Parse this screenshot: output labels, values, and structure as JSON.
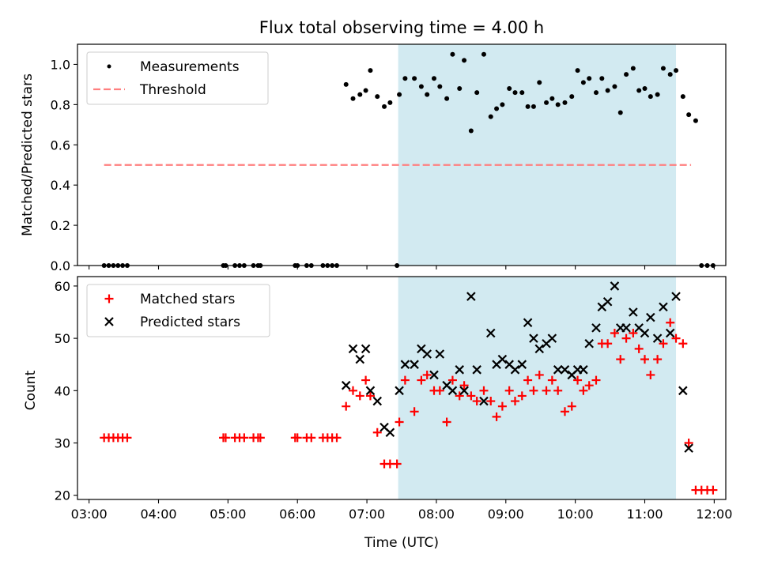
{
  "chart_data": [
    {
      "type": "scatter",
      "title": "Flux total observing time = 4.00 h",
      "xlabel": "",
      "ylabel": "Matched/Predicted stars",
      "ylim": [
        0,
        1.1
      ],
      "yticks": [
        0.0,
        0.2,
        0.4,
        0.6,
        0.8,
        1.0
      ],
      "ytick_labels": [
        "0.0",
        "0.2",
        "0.4",
        "0.6",
        "0.8",
        "1.0"
      ],
      "xlim": [
        "02:50",
        "12:10"
      ],
      "legend_placement": "upper-left",
      "shaded_span": {
        "start": "07:27",
        "end": "11:27",
        "color": "#add8e6"
      },
      "threshold": {
        "name": "Threshold",
        "value": 0.5,
        "x_start": "03:13",
        "x_end": "11:40",
        "color": "#ff7f7f"
      },
      "series": [
        {
          "name": "Measurements",
          "marker": "dot",
          "color": "#000000",
          "points": [
            [
              "03:13",
              0.0
            ],
            [
              "03:17",
              0.0
            ],
            [
              "03:21",
              0.0
            ],
            [
              "03:25",
              0.0
            ],
            [
              "03:29",
              0.0
            ],
            [
              "03:33",
              0.0
            ],
            [
              "04:56",
              0.0
            ],
            [
              "04:58",
              0.0
            ],
            [
              "05:06",
              0.0
            ],
            [
              "05:10",
              0.0
            ],
            [
              "05:14",
              0.0
            ],
            [
              "05:22",
              0.0
            ],
            [
              "05:26",
              0.0
            ],
            [
              "05:28",
              0.0
            ],
            [
              "05:58",
              0.0
            ],
            [
              "06:00",
              0.0
            ],
            [
              "06:08",
              0.0
            ],
            [
              "06:12",
              0.0
            ],
            [
              "06:22",
              0.0
            ],
            [
              "06:26",
              0.0
            ],
            [
              "06:30",
              0.0
            ],
            [
              "06:34",
              0.0
            ],
            [
              "06:42",
              0.9
            ],
            [
              "06:48",
              0.83
            ],
            [
              "06:54",
              0.85
            ],
            [
              "06:59",
              0.87
            ],
            [
              "07:03",
              0.97
            ],
            [
              "07:09",
              0.84
            ],
            [
              "07:15",
              0.79
            ],
            [
              "07:20",
              0.81
            ],
            [
              "07:26",
              0.0
            ],
            [
              "07:28",
              0.85
            ],
            [
              "07:33",
              0.93
            ],
            [
              "07:41",
              0.93
            ],
            [
              "07:47",
              0.89
            ],
            [
              "07:52",
              0.85
            ],
            [
              "07:58",
              0.93
            ],
            [
              "08:03",
              0.89
            ],
            [
              "08:09",
              0.83
            ],
            [
              "08:14",
              1.05
            ],
            [
              "08:20",
              0.88
            ],
            [
              "08:24",
              1.02
            ],
            [
              "08:30",
              0.67
            ],
            [
              "08:35",
              0.86
            ],
            [
              "08:41",
              1.05
            ],
            [
              "08:47",
              0.74
            ],
            [
              "08:52",
              0.78
            ],
            [
              "08:57",
              0.8
            ],
            [
              "09:03",
              0.88
            ],
            [
              "09:08",
              0.86
            ],
            [
              "09:14",
              0.86
            ],
            [
              "09:19",
              0.79
            ],
            [
              "09:24",
              0.79
            ],
            [
              "09:29",
              0.91
            ],
            [
              "09:35",
              0.81
            ],
            [
              "09:40",
              0.83
            ],
            [
              "09:45",
              0.8
            ],
            [
              "09:51",
              0.81
            ],
            [
              "09:57",
              0.84
            ],
            [
              "10:02",
              0.97
            ],
            [
              "10:07",
              0.91
            ],
            [
              "10:12",
              0.93
            ],
            [
              "10:18",
              0.86
            ],
            [
              "10:23",
              0.93
            ],
            [
              "10:28",
              0.87
            ],
            [
              "10:34",
              0.89
            ],
            [
              "10:39",
              0.76
            ],
            [
              "10:44",
              0.95
            ],
            [
              "10:50",
              0.98
            ],
            [
              "10:55",
              0.87
            ],
            [
              "11:00",
              0.88
            ],
            [
              "11:05",
              0.84
            ],
            [
              "11:11",
              0.85
            ],
            [
              "11:16",
              0.98
            ],
            [
              "11:22",
              0.95
            ],
            [
              "11:27",
              0.97
            ],
            [
              "11:33",
              0.84
            ],
            [
              "11:38",
              0.75
            ],
            [
              "11:44",
              0.72
            ],
            [
              "11:49",
              0.0
            ],
            [
              "11:54",
              0.0
            ],
            [
              "11:59",
              0.0
            ]
          ]
        }
      ]
    },
    {
      "type": "scatter",
      "title": "",
      "xlabel": "Time (UTC)",
      "ylabel": "Count",
      "ylim": [
        19.2,
        61.8
      ],
      "yticks": [
        20,
        30,
        40,
        50,
        60
      ],
      "ytick_labels": [
        "20",
        "30",
        "40",
        "50",
        "60"
      ],
      "xlim": [
        "02:50",
        "12:10"
      ],
      "xticks": [
        "03:00",
        "04:00",
        "05:00",
        "06:00",
        "07:00",
        "08:00",
        "09:00",
        "10:00",
        "11:00",
        "12:00"
      ],
      "xtick_labels": [
        "03:00",
        "04:00",
        "05:00",
        "06:00",
        "07:00",
        "08:00",
        "09:00",
        "10:00",
        "11:00",
        "12:00"
      ],
      "legend_placement": "upper-left",
      "shaded_span": {
        "start": "07:27",
        "end": "11:27",
        "color": "#add8e6"
      },
      "series": [
        {
          "name": "Matched stars",
          "marker": "plus",
          "color": "#ff0000",
          "points": [
            [
              "03:13",
              31
            ],
            [
              "03:17",
              31
            ],
            [
              "03:21",
              31
            ],
            [
              "03:25",
              31
            ],
            [
              "03:29",
              31
            ],
            [
              "03:33",
              31
            ],
            [
              "04:56",
              31
            ],
            [
              "04:58",
              31
            ],
            [
              "05:06",
              31
            ],
            [
              "05:10",
              31
            ],
            [
              "05:14",
              31
            ],
            [
              "05:22",
              31
            ],
            [
              "05:26",
              31
            ],
            [
              "05:28",
              31
            ],
            [
              "05:58",
              31
            ],
            [
              "06:00",
              31
            ],
            [
              "06:08",
              31
            ],
            [
              "06:12",
              31
            ],
            [
              "06:22",
              31
            ],
            [
              "06:26",
              31
            ],
            [
              "06:30",
              31
            ],
            [
              "06:34",
              31
            ],
            [
              "06:42",
              37
            ],
            [
              "06:48",
              40
            ],
            [
              "06:54",
              39
            ],
            [
              "06:59",
              42
            ],
            [
              "07:03",
              39
            ],
            [
              "07:09",
              32
            ],
            [
              "07:15",
              26
            ],
            [
              "07:20",
              26
            ],
            [
              "07:26",
              26
            ],
            [
              "07:28",
              34
            ],
            [
              "07:33",
              42
            ],
            [
              "07:41",
              36
            ],
            [
              "07:47",
              42
            ],
            [
              "07:52",
              43
            ],
            [
              "07:58",
              40
            ],
            [
              "08:03",
              40
            ],
            [
              "08:09",
              34
            ],
            [
              "08:14",
              42
            ],
            [
              "08:20",
              39
            ],
            [
              "08:24",
              41
            ],
            [
              "08:30",
              39
            ],
            [
              "08:35",
              38
            ],
            [
              "08:41",
              40
            ],
            [
              "08:47",
              38
            ],
            [
              "08:52",
              35
            ],
            [
              "08:57",
              37
            ],
            [
              "09:03",
              40
            ],
            [
              "09:08",
              38
            ],
            [
              "09:14",
              39
            ],
            [
              "09:19",
              42
            ],
            [
              "09:24",
              40
            ],
            [
              "09:29",
              43
            ],
            [
              "09:35",
              40
            ],
            [
              "09:40",
              42
            ],
            [
              "09:45",
              40
            ],
            [
              "09:51",
              36
            ],
            [
              "09:57",
              37
            ],
            [
              "10:02",
              42
            ],
            [
              "10:07",
              40
            ],
            [
              "10:12",
              41
            ],
            [
              "10:18",
              42
            ],
            [
              "10:23",
              49
            ],
            [
              "10:28",
              49
            ],
            [
              "10:34",
              51
            ],
            [
              "10:39",
              46
            ],
            [
              "10:44",
              50
            ],
            [
              "10:50",
              51
            ],
            [
              "10:55",
              48
            ],
            [
              "11:00",
              46
            ],
            [
              "11:05",
              43
            ],
            [
              "11:11",
              46
            ],
            [
              "11:16",
              49
            ],
            [
              "11:22",
              53
            ],
            [
              "11:27",
              50
            ],
            [
              "11:33",
              49
            ],
            [
              "11:38",
              30
            ],
            [
              "11:44",
              21
            ],
            [
              "11:49",
              21
            ],
            [
              "11:54",
              21
            ],
            [
              "11:59",
              21
            ]
          ]
        },
        {
          "name": "Predicted stars",
          "marker": "x",
          "color": "#000000",
          "points": [
            [
              "06:42",
              41
            ],
            [
              "06:48",
              48
            ],
            [
              "06:54",
              46
            ],
            [
              "06:59",
              48
            ],
            [
              "07:03",
              40
            ],
            [
              "07:09",
              38
            ],
            [
              "07:15",
              33
            ],
            [
              "07:20",
              32
            ],
            [
              "07:28",
              40
            ],
            [
              "07:33",
              45
            ],
            [
              "07:41",
              45
            ],
            [
              "07:47",
              48
            ],
            [
              "07:52",
              47
            ],
            [
              "07:58",
              43
            ],
            [
              "08:03",
              47
            ],
            [
              "08:09",
              41
            ],
            [
              "08:14",
              40
            ],
            [
              "08:20",
              44
            ],
            [
              "08:24",
              40
            ],
            [
              "08:30",
              58
            ],
            [
              "08:35",
              44
            ],
            [
              "08:41",
              38
            ],
            [
              "08:47",
              51
            ],
            [
              "08:52",
              45
            ],
            [
              "08:57",
              46
            ],
            [
              "09:03",
              45
            ],
            [
              "09:08",
              44
            ],
            [
              "09:14",
              45
            ],
            [
              "09:19",
              53
            ],
            [
              "09:24",
              50
            ],
            [
              "09:29",
              48
            ],
            [
              "09:35",
              49
            ],
            [
              "09:40",
              50
            ],
            [
              "09:45",
              44
            ],
            [
              "09:51",
              44
            ],
            [
              "09:57",
              43
            ],
            [
              "10:02",
              44
            ],
            [
              "10:07",
              44
            ],
            [
              "10:12",
              49
            ],
            [
              "10:18",
              52
            ],
            [
              "10:23",
              56
            ],
            [
              "10:28",
              57
            ],
            [
              "10:34",
              60
            ],
            [
              "10:39",
              52
            ],
            [
              "10:44",
              52
            ],
            [
              "10:50",
              55
            ],
            [
              "10:55",
              52
            ],
            [
              "11:00",
              51
            ],
            [
              "11:05",
              54
            ],
            [
              "11:11",
              50
            ],
            [
              "11:16",
              56
            ],
            [
              "11:22",
              51
            ],
            [
              "11:27",
              58
            ],
            [
              "11:33",
              40
            ],
            [
              "11:38",
              29
            ]
          ]
        }
      ]
    }
  ]
}
